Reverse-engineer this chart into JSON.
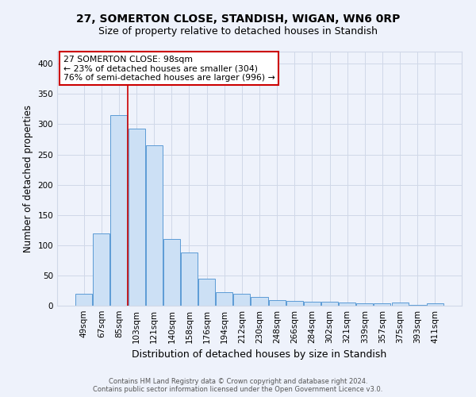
{
  "title": "27, SOMERTON CLOSE, STANDISH, WIGAN, WN6 0RP",
  "subtitle": "Size of property relative to detached houses in Standish",
  "xlabel": "Distribution of detached houses by size in Standish",
  "ylabel": "Number of detached properties",
  "bar_labels": [
    "49sqm",
    "67sqm",
    "85sqm",
    "103sqm",
    "121sqm",
    "140sqm",
    "158sqm",
    "176sqm",
    "194sqm",
    "212sqm",
    "230sqm",
    "248sqm",
    "266sqm",
    "284sqm",
    "302sqm",
    "321sqm",
    "339sqm",
    "357sqm",
    "375sqm",
    "393sqm",
    "411sqm"
  ],
  "bar_values": [
    20,
    120,
    315,
    293,
    265,
    110,
    88,
    45,
    22,
    20,
    15,
    9,
    8,
    7,
    7,
    5,
    4,
    4,
    5,
    1,
    4
  ],
  "bar_color": "#cce0f5",
  "bar_edge_color": "#5b9bd5",
  "vline_color": "#cc0000",
  "annotation_line1": "27 SOMERTON CLOSE: 98sqm",
  "annotation_line2": "← 23% of detached houses are smaller (304)",
  "annotation_line3": "76% of semi-detached houses are larger (996) →",
  "annotation_box_color": "#ffffff",
  "annotation_box_edge": "#cc0000",
  "ylim": [
    0,
    420
  ],
  "yticks": [
    0,
    50,
    100,
    150,
    200,
    250,
    300,
    350,
    400
  ],
  "grid_color": "#d0d8e8",
  "background_color": "#eef2fb",
  "footer_line1": "Contains HM Land Registry data © Crown copyright and database right 2024.",
  "footer_line2": "Contains public sector information licensed under the Open Government Licence v3.0.",
  "title_fontsize": 10,
  "subtitle_fontsize": 9,
  "xlabel_fontsize": 9,
  "ylabel_fontsize": 8.5,
  "tick_fontsize": 7.5,
  "footer_fontsize": 6
}
